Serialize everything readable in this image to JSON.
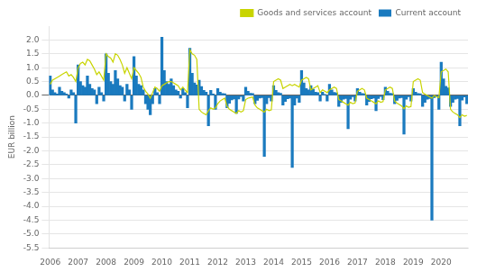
{
  "chart_data": {
    "type": "bar",
    "ylabel": "EUR billion",
    "categories": [
      "2006",
      null,
      null,
      null,
      null,
      null,
      null,
      null,
      null,
      null,
      null,
      null,
      "2007",
      null,
      null,
      null,
      null,
      null,
      null,
      null,
      null,
      null,
      null,
      null,
      "2008",
      null,
      null,
      null,
      null,
      null,
      null,
      null,
      null,
      null,
      null,
      null,
      "2009",
      null,
      null,
      null,
      null,
      null,
      null,
      null,
      null,
      null,
      null,
      null,
      "2010",
      null,
      null,
      null,
      null,
      null,
      null,
      null,
      null,
      null,
      null,
      null,
      "2011",
      null,
      null,
      null,
      null,
      null,
      null,
      null,
      null,
      null,
      null,
      null,
      "2012",
      null,
      null,
      null,
      null,
      null,
      null,
      null,
      null,
      null,
      null,
      null,
      "2013",
      null,
      null,
      null,
      null,
      null,
      null,
      null,
      null,
      null,
      null,
      null,
      "2014",
      null,
      null,
      null,
      null,
      null,
      null,
      null,
      null,
      null,
      null,
      null,
      "2015",
      null,
      null,
      null,
      null,
      null,
      null,
      null,
      null,
      null,
      null,
      null,
      "2016",
      null,
      null,
      null,
      null,
      null,
      null,
      null,
      null,
      null,
      null,
      null,
      "2017",
      null,
      null,
      null,
      null,
      null,
      null,
      null,
      null,
      null,
      null,
      null,
      "2018",
      null,
      null,
      null,
      null,
      null,
      null,
      null,
      null,
      null,
      null,
      null,
      "2019",
      null,
      null,
      null,
      null,
      null,
      null,
      null,
      null,
      null,
      null,
      null,
      "2020",
      null,
      null,
      null,
      null,
      null,
      null,
      null,
      null,
      null,
      null,
      null
    ],
    "series": [
      {
        "name": "Current account",
        "type": "bar",
        "color": "#1a7abf",
        "values": [
          0.7,
          0.2,
          0.1,
          0.05,
          0.3,
          0.15,
          0.1,
          0.05,
          -0.1,
          0.2,
          0.1,
          -1.0,
          1.1,
          0.5,
          0.35,
          0.3,
          0.7,
          0.4,
          0.25,
          0.2,
          -0.3,
          0.3,
          0.1,
          -0.2,
          1.5,
          0.8,
          0.5,
          0.4,
          0.9,
          0.6,
          0.35,
          0.3,
          -0.2,
          0.4,
          0.2,
          -0.5,
          1.4,
          0.7,
          0.4,
          0.35,
          0.2,
          -0.3,
          -0.5,
          -0.7,
          -0.3,
          0.25,
          0.1,
          -0.3,
          2.1,
          0.9,
          0.5,
          0.4,
          0.6,
          0.35,
          0.2,
          0.15,
          -0.1,
          0.25,
          0.1,
          -0.45,
          1.7,
          0.8,
          0.45,
          0.38,
          0.55,
          0.32,
          0.18,
          0.12,
          -1.1,
          0.18,
          0.05,
          -0.5,
          0.25,
          0.12,
          0.07,
          0.06,
          -0.45,
          -0.28,
          -0.16,
          -0.13,
          -0.65,
          -0.13,
          -0.04,
          -0.2,
          0.3,
          0.15,
          0.08,
          0.07,
          -0.3,
          -0.18,
          -0.1,
          -0.08,
          -2.2,
          -0.3,
          -0.08,
          -0.2,
          0.35,
          0.18,
          0.1,
          0.08,
          -0.35,
          -0.22,
          -0.12,
          -0.1,
          -2.6,
          -0.35,
          -0.1,
          -0.25,
          0.9,
          0.45,
          0.25,
          0.2,
          0.35,
          0.22,
          0.12,
          0.1,
          -0.2,
          0.12,
          0.04,
          -0.2,
          0.4,
          0.2,
          0.11,
          0.09,
          -0.4,
          -0.25,
          -0.14,
          -0.11,
          -1.2,
          -0.14,
          -0.05,
          -0.2,
          0.25,
          0.12,
          0.07,
          0.06,
          -0.35,
          -0.22,
          -0.12,
          -0.1,
          -0.55,
          -0.11,
          -0.04,
          -0.15,
          0.3,
          0.15,
          0.08,
          0.07,
          -0.3,
          -0.18,
          -0.1,
          -0.08,
          -1.4,
          -0.14,
          -0.05,
          -0.2,
          0.25,
          0.12,
          0.07,
          0.06,
          -0.4,
          -0.25,
          -0.14,
          -0.11,
          -4.5,
          -0.08,
          -0.03,
          -0.5,
          1.2,
          0.6,
          0.33,
          0.27,
          -0.4,
          -0.25,
          -0.14,
          -0.11,
          -1.1,
          -0.17,
          -0.06,
          -0.3
        ]
      },
      {
        "name": "Goods and services account",
        "type": "line",
        "color": "#c8d400",
        "values": [
          0.4,
          0.55,
          0.6,
          0.65,
          0.7,
          0.75,
          0.8,
          0.85,
          0.7,
          0.75,
          0.65,
          0.5,
          1.0,
          1.15,
          1.2,
          1.1,
          1.3,
          1.25,
          1.1,
          0.95,
          0.75,
          0.85,
          0.7,
          0.55,
          1.5,
          1.4,
          1.35,
          1.2,
          1.5,
          1.45,
          1.3,
          1.1,
          0.8,
          1.0,
          0.8,
          0.6,
          1.0,
          0.9,
          0.8,
          0.65,
          0.3,
          0.15,
          0.05,
          -0.1,
          0.1,
          0.3,
          0.25,
          0.15,
          0.35,
          0.4,
          0.45,
          0.5,
          0.5,
          0.45,
          0.4,
          0.35,
          0.2,
          0.3,
          0.2,
          0.1,
          1.65,
          1.5,
          1.45,
          1.3,
          -0.5,
          -0.6,
          -0.65,
          -0.7,
          -0.55,
          -0.45,
          -0.5,
          -0.45,
          -0.3,
          -0.2,
          -0.15,
          -0.1,
          -0.4,
          -0.5,
          -0.55,
          -0.6,
          -0.65,
          -0.55,
          -0.6,
          -0.55,
          -0.15,
          -0.1,
          -0.08,
          -0.06,
          -0.35,
          -0.45,
          -0.5,
          -0.55,
          -0.6,
          -0.5,
          -0.55,
          -0.52,
          0.5,
          0.55,
          0.6,
          0.55,
          0.25,
          0.3,
          0.35,
          0.4,
          0.35,
          0.4,
          0.35,
          0.3,
          0.55,
          0.6,
          0.65,
          0.6,
          0.2,
          0.25,
          0.3,
          0.35,
          0.1,
          0.2,
          0.15,
          0.1,
          0.2,
          0.25,
          0.3,
          0.25,
          -0.15,
          -0.2,
          -0.25,
          -0.3,
          -0.35,
          -0.25,
          -0.3,
          -0.27,
          0.15,
          0.2,
          0.25,
          0.2,
          -0.1,
          -0.15,
          -0.2,
          -0.25,
          -0.3,
          -0.2,
          -0.25,
          -0.22,
          0.2,
          0.25,
          0.3,
          0.25,
          -0.2,
          -0.28,
          -0.33,
          -0.38,
          -0.48,
          -0.38,
          -0.43,
          -0.4,
          0.5,
          0.55,
          0.6,
          0.55,
          0.1,
          0.05,
          0.0,
          -0.05,
          -0.1,
          0.0,
          -0.05,
          -0.08,
          0.85,
          0.9,
          0.95,
          0.85,
          -0.5,
          -0.6,
          -0.65,
          -0.7,
          -0.8,
          -0.7,
          -0.75,
          -0.72
        ]
      }
    ],
    "ylim": [
      -5.5,
      2.5
    ],
    "yticks": [
      {
        "value": 2.0,
        "label": "2.0"
      },
      {
        "value": 1.5,
        "label": "1.5"
      },
      {
        "value": 1.0,
        "label": "1.0"
      },
      {
        "value": 0.5,
        "label": "0.5"
      },
      {
        "value": 0.0,
        "label": "0.0"
      },
      {
        "value": -0.5,
        "label": "-0.5"
      },
      {
        "value": -1.0,
        "label": "-1.0"
      },
      {
        "value": -1.5,
        "label": "-1.5"
      },
      {
        "value": -2.0,
        "label": "-2.0"
      },
      {
        "value": -2.5,
        "label": "-2.5"
      },
      {
        "value": -3.0,
        "label": "-3.0"
      },
      {
        "value": -3.5,
        "label": "-3.5"
      },
      {
        "value": -4.0,
        "label": "-4.0"
      },
      {
        "value": -4.5,
        "label": "-4.5"
      },
      {
        "value": -5.0,
        "label": "-5.0"
      },
      {
        "value": -5.5,
        "label": "-5.5"
      }
    ],
    "grid": true,
    "legend": "upper right"
  }
}
